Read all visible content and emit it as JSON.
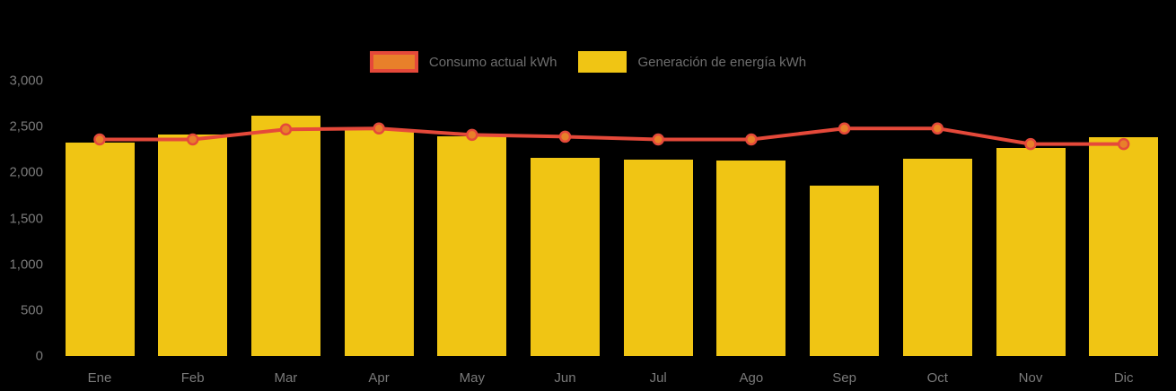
{
  "legend": {
    "items": [
      {
        "label": "Consumo actual kWh"
      },
      {
        "label": "Generación de energía kWh"
      }
    ]
  },
  "chart_data": {
    "type": "bar",
    "title": "",
    "categories": [
      "Ene",
      "Feb",
      "Mar",
      "Apr",
      "May",
      "Jun",
      "Jul",
      "Ago",
      "Sep",
      "Oct",
      "Nov",
      "Dic"
    ],
    "series": [
      {
        "name": "Consumo actual kWh",
        "type": "line",
        "color": "#E5493A",
        "marker_fill": "#E8802A",
        "values": [
          2360,
          2360,
          2470,
          2480,
          2410,
          2390,
          2360,
          2360,
          2480,
          2480,
          2310,
          2310
        ]
      },
      {
        "name": "Generación de energía kWh",
        "type": "bar",
        "color": "#F0C514",
        "values": [
          2330,
          2410,
          2620,
          2470,
          2390,
          2160,
          2140,
          2130,
          1860,
          2150,
          2270,
          2380
        ]
      }
    ],
    "xlabel": "",
    "ylabel": "",
    "ylim": [
      0,
      3000
    ],
    "ytick_interval": 500,
    "ytick_labels": [
      "0",
      "500",
      "1,000",
      "1,500",
      "2,000",
      "2,500",
      "3,000"
    ],
    "grid": false,
    "legend_position": "top-center",
    "background": "#000000",
    "axis_label_color": "#7A7A7A"
  }
}
